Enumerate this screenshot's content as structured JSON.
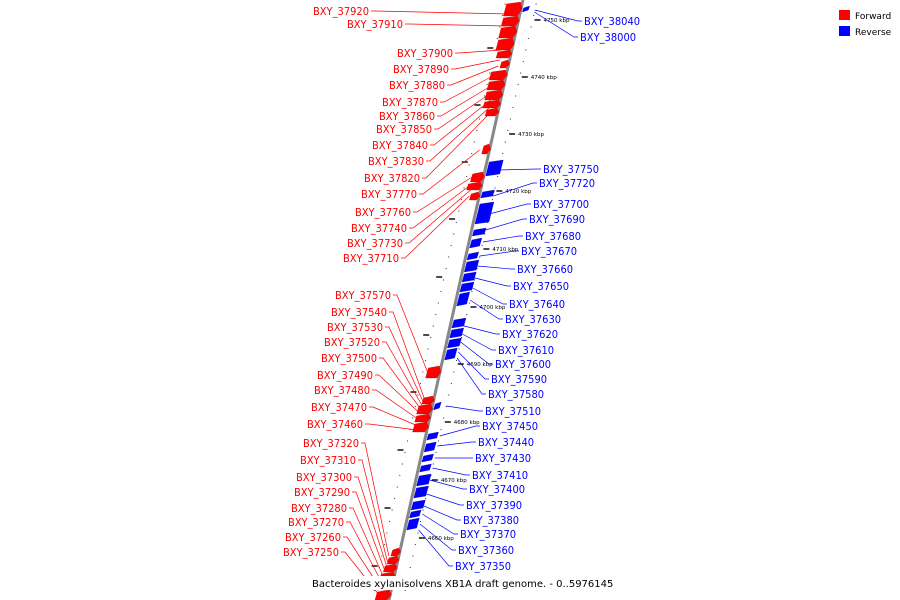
{
  "caption": "Bacteroides xylanisolvens XB1A draft genome. - 0..5976145",
  "legend": [
    {
      "label": "Forward",
      "color": "#ff0000"
    },
    {
      "label": "Reverse",
      "color": "#0000ff"
    }
  ],
  "colors": {
    "forward": "#ff0000",
    "reverse": "#0000ff",
    "backbone": "#888888"
  },
  "ticks": [
    "4750 kbp",
    "4740 kbp",
    "4730 kbp",
    "4720 kbp",
    "4710 kbp",
    "4700 kbp",
    "4690 kbp",
    "4680 kbp",
    "4670 kbp",
    "4660 kbp"
  ],
  "forward_genes": [
    "BXY_37920",
    "BXY_37910",
    "BXY_37900",
    "BXY_37890",
    "BXY_37880",
    "BXY_37870",
    "BXY_37860",
    "BXY_37850",
    "BXY_37840",
    "BXY_37830",
    "BXY_37820",
    "BXY_37770",
    "BXY_37760",
    "BXY_37740",
    "BXY_37730",
    "BXY_37710",
    "BXY_37570",
    "BXY_37540",
    "BXY_37530",
    "BXY_37520",
    "BXY_37500",
    "BXY_37490",
    "BXY_37480",
    "BXY_37470",
    "BXY_37460",
    "BXY_37320",
    "BXY_37310",
    "BXY_37300",
    "BXY_37290",
    "BXY_37280",
    "BXY_37270",
    "BXY_37260",
    "BXY_37250"
  ],
  "reverse_genes": [
    "BXY_38040",
    "BXY_38000",
    "BXY_37750",
    "BXY_37720",
    "BXY_37700",
    "BXY_37690",
    "BXY_37680",
    "BXY_37670",
    "BXY_37660",
    "BXY_37650",
    "BXY_37640",
    "BXY_37630",
    "BXY_37620",
    "BXY_37610",
    "BXY_37600",
    "BXY_37590",
    "BXY_37580",
    "BXY_37510",
    "BXY_37450",
    "BXY_37440",
    "BXY_37430",
    "BXY_37410",
    "BXY_37400",
    "BXY_37390",
    "BXY_37380",
    "BXY_37370",
    "BXY_37360",
    "BXY_37350"
  ]
}
